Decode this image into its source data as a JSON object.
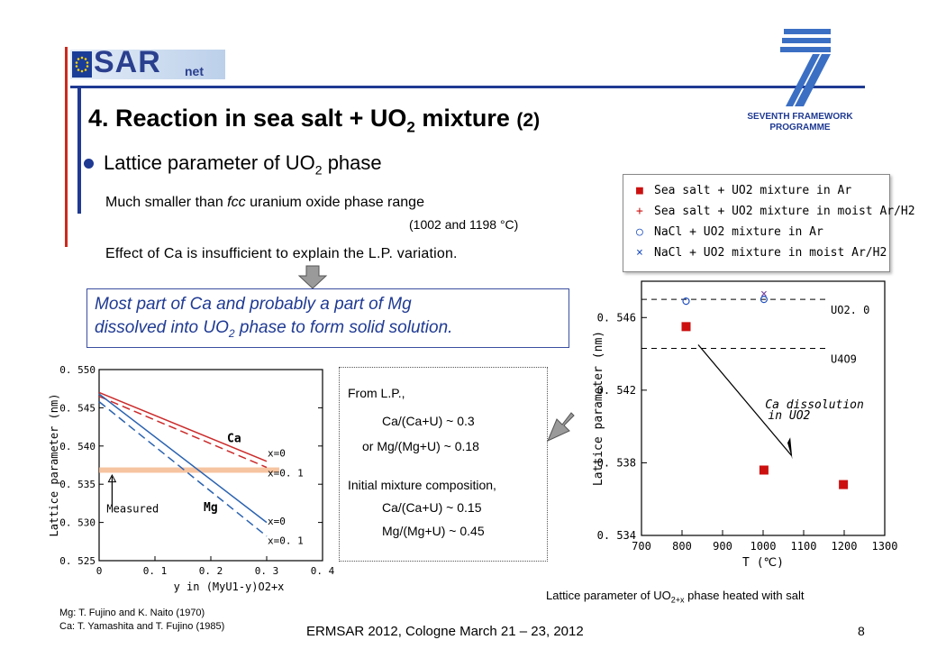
{
  "logo": {
    "text": "SAR",
    "sub": "net"
  },
  "fp7": {
    "line1": "SEVENTH FRAMEWORK",
    "line2": "PROGRAMME"
  },
  "title": {
    "pre": "4. Reaction in sea salt + UO",
    "sub": "2",
    "post": " mixture ",
    "suffix": "(2)"
  },
  "bullet": {
    "pre": "Lattice parameter of UO",
    "sub": "2",
    "post": " phase"
  },
  "body": {
    "line1_pre": "Much smaller than ",
    "line1_em": "fcc",
    "line1_post": " uranium oxide phase range",
    "line1b": "(1002 and 1198 °C)",
    "line2": "Effect of Ca is insufficient to explain the L.P. variation."
  },
  "callout": {
    "l1": "Most part of Ca and probably a part of Mg",
    "l2_pre": "dissolved into UO",
    "l2_sub": "2",
    "l2_post": " phase to form solid solution."
  },
  "estimate": {
    "head": "From L.P.,",
    "ca": "Ca/(Ca+U) ~ 0.3",
    "mg": "or Mg/(Mg+U) ~ 0.18",
    "init": "Initial mixture composition,",
    "ca0": "Ca/(Ca+U) ~ 0.15",
    "mg0": "Mg/(Mg+U) ~ 0.45"
  },
  "legend": [
    {
      "symbol": "■",
      "color": "#cc1010",
      "label": "Sea salt + UO2 mixture in Ar"
    },
    {
      "symbol": "+",
      "color": "#cc1010",
      "label": "Sea salt + UO2 mixture in moist Ar/H2"
    },
    {
      "symbol": "○",
      "color": "#2050c0",
      "label": "NaCl + UO2 mixture in Ar"
    },
    {
      "symbol": "×",
      "color": "#2050c0",
      "label": "NaCl + UO2 mixture in moist Ar/H2"
    }
  ],
  "chart_data": [
    {
      "type": "line",
      "ylabel": "Lattice parameter (nm)",
      "xlabel": "y in (MyU1-y)O2+x",
      "xlim": [
        0,
        0.4
      ],
      "ylim": [
        0.525,
        0.55
      ],
      "xticks": [
        "0",
        "0. 1",
        "0. 2",
        "0. 3",
        "0. 4"
      ],
      "yticks": [
        "0. 550",
        "0. 545",
        "0. 540",
        "0. 535",
        "0. 530",
        "0. 525"
      ],
      "series": [
        {
          "name": "Ca x=0",
          "color": "#cc2a2a",
          "dash": false,
          "x": [
            0,
            0.3
          ],
          "y": [
            0.547,
            0.538
          ]
        },
        {
          "name": "Ca x=0.1",
          "color": "#cc2a2a",
          "dash": true,
          "x": [
            0,
            0.3
          ],
          "y": [
            0.5465,
            0.5372
          ]
        },
        {
          "name": "Mg x=0",
          "color": "#2a62b0",
          "dash": false,
          "x": [
            0,
            0.3
          ],
          "y": [
            0.5468,
            0.53
          ]
        },
        {
          "name": "Mg x=0.1",
          "color": "#2a62b0",
          "dash": true,
          "x": [
            0,
            0.3
          ],
          "y": [
            0.5458,
            0.5282
          ]
        }
      ],
      "band": [
        0.5365,
        0.5372
      ],
      "annotations": [
        "Ca",
        "Mg",
        "x=0",
        "x=0. 1",
        "x=0",
        "x=0. 1",
        "Measured"
      ]
    },
    {
      "type": "scatter",
      "ylabel": "Lattice parameter (nm)",
      "xlabel": "T (℃)",
      "xlim": [
        700,
        1300
      ],
      "ylim": [
        0.534,
        0.548
      ],
      "xticks": [
        "700",
        "800",
        "900",
        "1000",
        "1100",
        "1200",
        "1300"
      ],
      "yticks": [
        "0. 546",
        "0. 542",
        "0. 538",
        "0. 534"
      ],
      "points": [
        {
          "series": "Sea salt + UO2 mixture in Ar",
          "marker": "square",
          "x": 810,
          "y": 0.5455
        },
        {
          "series": "Sea salt + UO2 mixture in Ar",
          "marker": "square",
          "x": 1002,
          "y": 0.5376
        },
        {
          "series": "Sea salt + UO2 mixture in Ar",
          "marker": "square",
          "x": 1198,
          "y": 0.5368
        },
        {
          "series": "NaCl + UO2 mixture in Ar",
          "marker": "circle",
          "x": 810,
          "y": 0.5469
        },
        {
          "series": "NaCl + UO2 mixture in Ar",
          "marker": "circle",
          "x": 1002,
          "y": 0.547
        },
        {
          "series": "NaCl + UO2 mixture in moist Ar/H2",
          "marker": "cross",
          "x": 1002,
          "y": 0.5473
        }
      ],
      "reference_lines": [
        {
          "label": "UO2. 0",
          "y": 0.547
        },
        {
          "label": "U4O9",
          "y": 0.5443
        }
      ],
      "arrow_label": [
        "Ca dissolution",
        "in UO2"
      ]
    }
  ],
  "caption": {
    "pre": "Lattice parameter of UO",
    "sub": "2+x",
    "post": " phase heated with salt"
  },
  "refs": {
    "mg": "Mg: T. Fujino and K. Naito (1970)",
    "ca": "Ca: T. Yamashita and T. Fujino (1985)"
  },
  "footer": "ERMSAR 2012, Cologne March 21 – 23, 2012",
  "page": "8"
}
